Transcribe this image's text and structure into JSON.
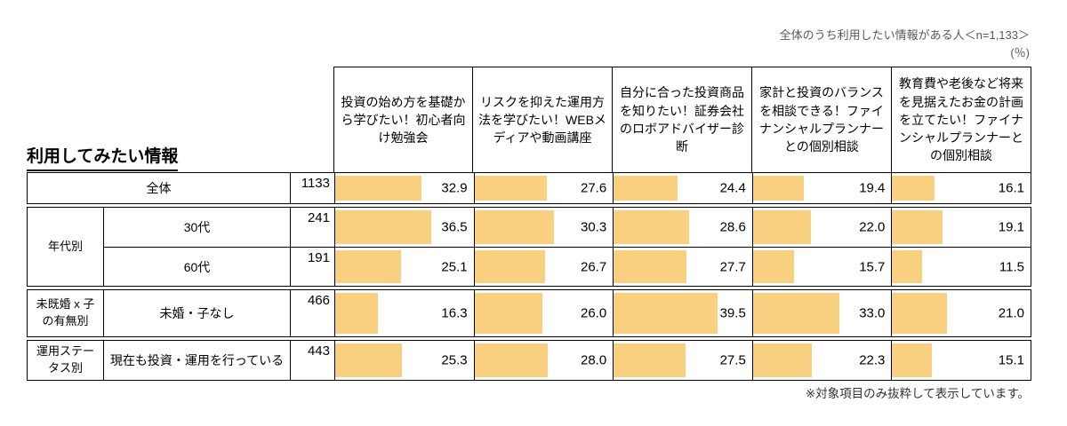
{
  "annotations": {
    "top_note_line1": "全体のうち利用したい情報がある人＜n=1,133＞",
    "top_note_line2": "(％)",
    "bottom_note": "※対象項目のみ抜粋して表示しています。"
  },
  "title": "利用してみたい情報",
  "chart_data": {
    "type": "table",
    "subtype": "horizontal-bar-in-cells",
    "unit": "%",
    "bar_color": "#F9CF80",
    "n_total": "1,133",
    "columns": [
      "投資の始め方を基礎から学びたい！初心者向け勉強会",
      "リスクを抑えた運用方法を学びたい！WEBメディアや動画講座",
      "自分に合った投資商品を知りたい！証券会社のロボアドバイザー診断",
      "家計と投資のバランスを相談できる！ファイナンシャルプランナーとの個別相談",
      "教育費や老後など将来を見据えたお金の計画を立てたい！ファイナンシャルプランナーとの個別相談"
    ],
    "sections": [
      {
        "group": "",
        "rows": [
          {
            "label": "全体",
            "n": "1133",
            "values": [
              32.9,
              27.6,
              24.4,
              19.4,
              16.1
            ]
          }
        ]
      },
      {
        "group": "年代別",
        "rows": [
          {
            "label": "30代",
            "n": "241",
            "values": [
              36.5,
              30.3,
              28.6,
              22.0,
              19.1
            ]
          },
          {
            "label": "60代",
            "n": "191",
            "values": [
              25.1,
              26.7,
              27.7,
              15.7,
              11.5
            ]
          }
        ]
      },
      {
        "group": "未既婚 x 子の有無別",
        "rows": [
          {
            "label": "未婚・子なし",
            "n": "466",
            "values": [
              16.3,
              26.0,
              39.5,
              33.0,
              21.0
            ]
          }
        ]
      },
      {
        "group": "運用ステータス別",
        "rows": [
          {
            "label": "現在も投資・運用を行っている",
            "n": "443",
            "values": [
              25.3,
              28.0,
              27.5,
              22.3,
              15.1
            ]
          }
        ]
      }
    ]
  }
}
